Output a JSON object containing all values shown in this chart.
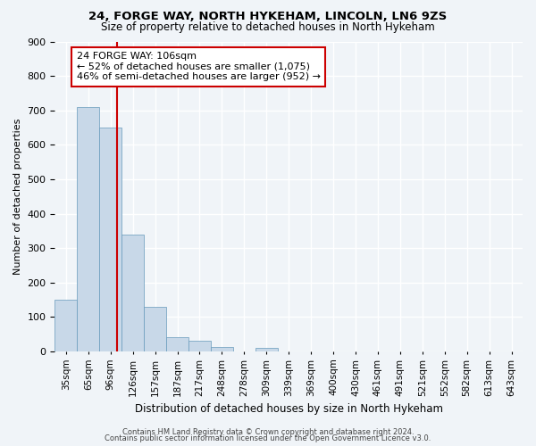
{
  "title1": "24, FORGE WAY, NORTH HYKEHAM, LINCOLN, LN6 9ZS",
  "title2": "Size of property relative to detached houses in North Hykeham",
  "xlabel": "Distribution of detached houses by size in North Hykeham",
  "ylabel": "Number of detached properties",
  "bar_color": "#c8d8e8",
  "bar_edge_color": "#6699bb",
  "bins": [
    "35sqm",
    "65sqm",
    "96sqm",
    "126sqm",
    "157sqm",
    "187sqm",
    "217sqm",
    "248sqm",
    "278sqm",
    "309sqm",
    "339sqm",
    "369sqm",
    "400sqm",
    "430sqm",
    "461sqm",
    "491sqm",
    "521sqm",
    "552sqm",
    "582sqm",
    "613sqm",
    "643sqm"
  ],
  "values": [
    150,
    710,
    650,
    340,
    130,
    42,
    32,
    12,
    0,
    10,
    0,
    0,
    0,
    0,
    0,
    0,
    0,
    0,
    0,
    0,
    0
  ],
  "ylim": [
    0,
    900
  ],
  "yticks": [
    0,
    100,
    200,
    300,
    400,
    500,
    600,
    700,
    800,
    900
  ],
  "property_line_x": 2.3,
  "annotation_text": "24 FORGE WAY: 106sqm\n← 52% of detached houses are smaller (1,075)\n46% of semi-detached houses are larger (952) →",
  "annotation_box_color": "#ffffff",
  "annotation_border_color": "#cc0000",
  "red_line_color": "#cc0000",
  "footer_line1": "Contains HM Land Registry data © Crown copyright and database right 2024.",
  "footer_line2": "Contains public sector information licensed under the Open Government Licence v3.0.",
  "background_color": "#f0f4f8",
  "grid_color": "#ffffff"
}
